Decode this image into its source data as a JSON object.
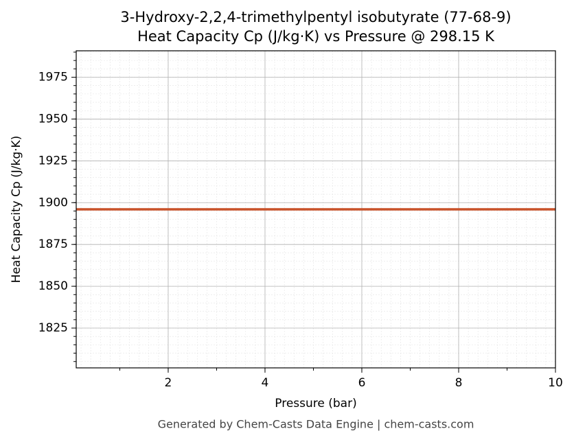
{
  "chart_data": {
    "type": "line",
    "title": "3-Hydroxy-2,2,4-trimethylpentyl isobutyrate (77-68-9)",
    "subtitle": "Heat Capacity Cp (J/kg·K) vs Pressure @ 298.15 K",
    "x_label": "Pressure (bar)",
    "y_label": "Heat Capacity Cp (J/kg·K)",
    "footer": "Generated by Chem-Casts Data Engine | chem-casts.com",
    "x": [
      0.1,
      10
    ],
    "series": [
      {
        "name": "Cp",
        "color": "#c8522a",
        "values": [
          1896,
          1896
        ]
      }
    ],
    "xlim": [
      0.1,
      10
    ],
    "xticks": [
      2,
      4,
      6,
      8,
      10
    ],
    "ylim": [
      1801.2,
      1990.8
    ],
    "yticks": [
      1825,
      1850,
      1875,
      1900,
      1925,
      1950,
      1975
    ],
    "grid": true,
    "minor_grid": true
  }
}
